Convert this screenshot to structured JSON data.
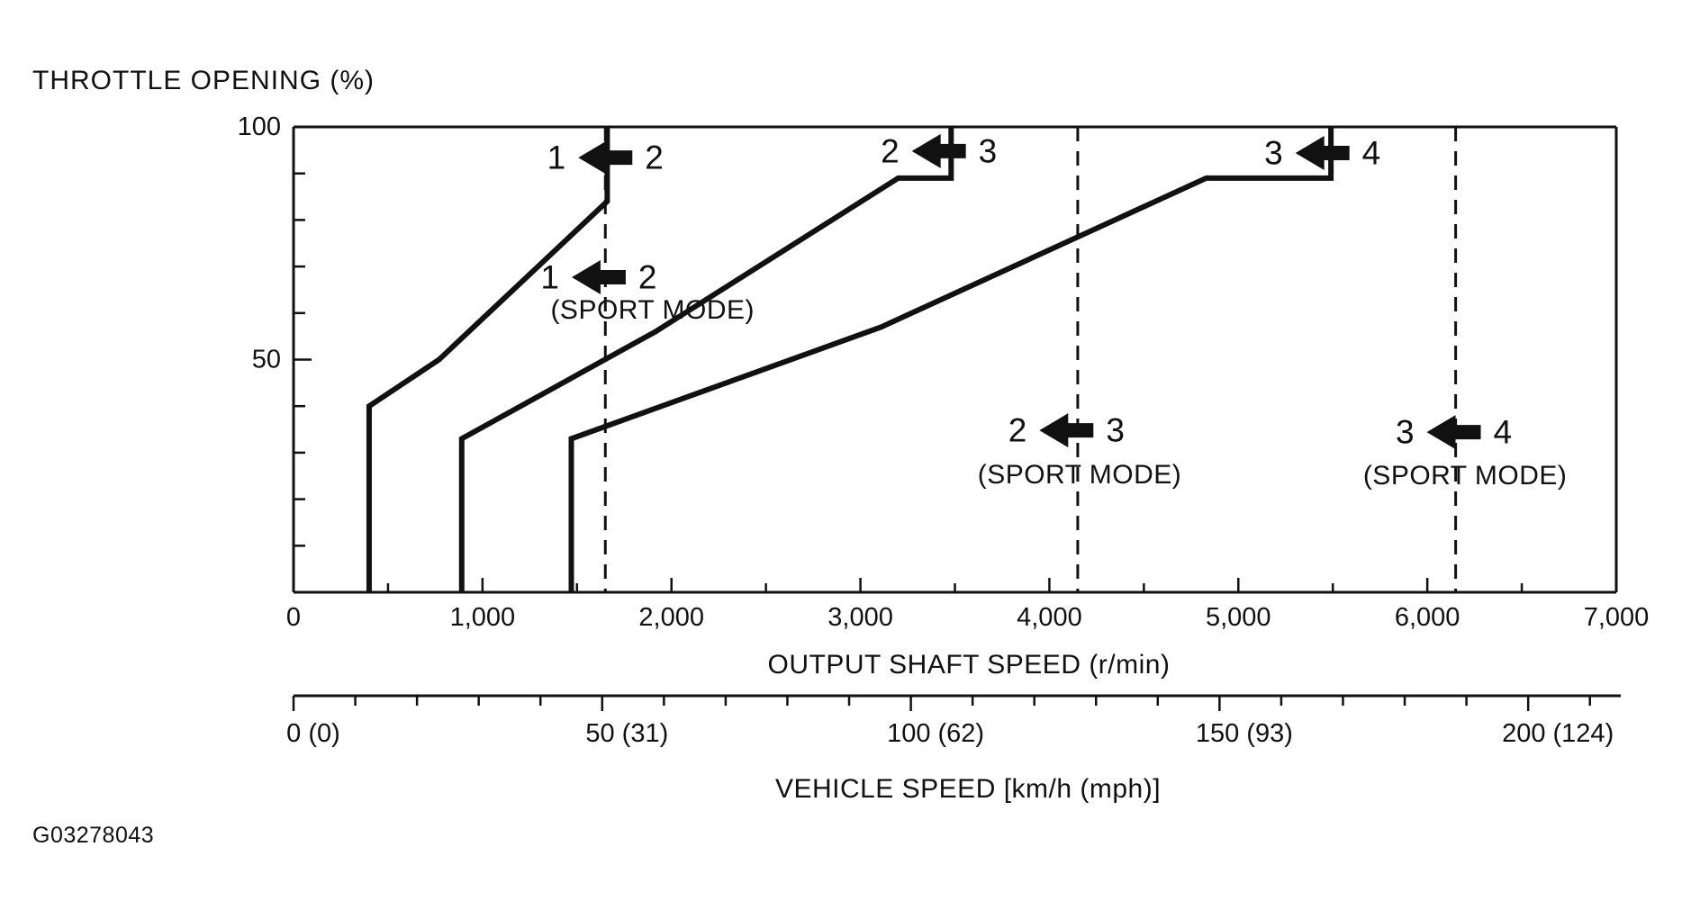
{
  "figure_code": "G03278043",
  "chart_data": {
    "type": "line",
    "title": "THROTTLE OPENING (%)",
    "xlabel": "OUTPUT SHAFT SPEED (r/min)",
    "x2label": "VEHICLE SPEED [km/h (mph)]",
    "xlim": [
      0,
      7000
    ],
    "ylim": [
      0,
      100
    ],
    "grid": false,
    "x_major_ticks": [
      {
        "value": 0,
        "label": "0"
      },
      {
        "value": 1000,
        "label": "1,000"
      },
      {
        "value": 2000,
        "label": "2,000"
      },
      {
        "value": 3000,
        "label": "3,000"
      },
      {
        "value": 4000,
        "label": "4,000"
      },
      {
        "value": 5000,
        "label": "5,000"
      },
      {
        "value": 6000,
        "label": "6,000"
      },
      {
        "value": 7000,
        "label": "7,000"
      }
    ],
    "x_minor_ticks": [
      500,
      1500,
      2500,
      3500,
      4500,
      5500,
      6500
    ],
    "y_major_ticks": [
      {
        "value": 50,
        "label": "50"
      },
      {
        "value": 100,
        "label": "100"
      }
    ],
    "y_minor_ticks": [
      10,
      20,
      30,
      40,
      60,
      70,
      80,
      90
    ],
    "series": [
      {
        "name": "downshift-2-to-1",
        "points": [
          [
            400,
            0
          ],
          [
            400,
            40
          ],
          [
            770,
            50
          ],
          [
            1660,
            84
          ],
          [
            1660,
            100
          ]
        ]
      },
      {
        "name": "downshift-3-to-2",
        "points": [
          [
            890,
            0
          ],
          [
            890,
            33
          ],
          [
            1915,
            56
          ],
          [
            3200,
            89
          ],
          [
            3480,
            89
          ],
          [
            3480,
            100
          ]
        ]
      },
      {
        "name": "downshift-4-to-3",
        "points": [
          [
            1470,
            0
          ],
          [
            1470,
            33
          ],
          [
            3110,
            57
          ],
          [
            4830,
            89
          ],
          [
            5490,
            89
          ],
          [
            5490,
            100
          ]
        ]
      }
    ],
    "sport_mode_lines": [
      {
        "name": "sport-1-2",
        "rpm": 1650
      },
      {
        "name": "sport-2-3",
        "rpm": 4150
      },
      {
        "name": "sport-3-4",
        "rpm": 6150
      }
    ],
    "annotations": [
      {
        "left": "1",
        "right": "2",
        "x": 1650,
        "y": 93.4
      },
      {
        "left": "2",
        "right": "3",
        "x": 3415,
        "y": 94.8
      },
      {
        "left": "3",
        "right": "4",
        "x": 5445,
        "y": 94.4
      },
      {
        "left": "1",
        "right": "2",
        "x": 1615,
        "y": 67.7,
        "caption": "(SPORT MODE)",
        "caption_x": 1900,
        "caption_y": 60.7
      },
      {
        "left": "2",
        "right": "3",
        "x": 4090,
        "y": 34.8,
        "caption": "(SPORT MODE)",
        "caption_x": 4160,
        "caption_y": 25.3
      },
      {
        "left": "3",
        "right": "4",
        "x": 6140,
        "y": 34.4,
        "caption": "(SPORT MODE)",
        "caption_x": 6200,
        "caption_y": 25.1
      }
    ],
    "vehicle_axis": {
      "range_kmh": [
        0,
        215
      ],
      "minor_step_kmh": 10,
      "max_minor_kmh": 210,
      "major_ticks": [
        {
          "kmh": 0,
          "label": "0 (0)"
        },
        {
          "kmh": 50,
          "label": "50 (31)"
        },
        {
          "kmh": 100,
          "label": "100 (62)"
        },
        {
          "kmh": 150,
          "label": "150 (93)"
        },
        {
          "kmh": 200,
          "label": "200 (124)"
        }
      ]
    },
    "colors": {
      "ink": "#111111",
      "background": "#ffffff"
    }
  }
}
